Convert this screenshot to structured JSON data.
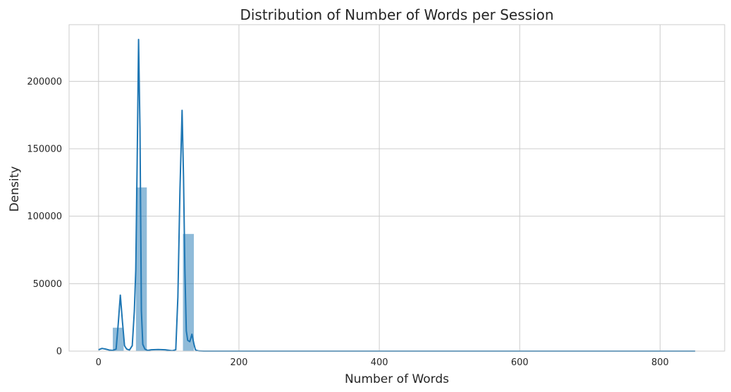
{
  "chart_data": {
    "type": "bar",
    "title": "Distribution of Number of Words per Session",
    "xlabel": "Number of Words",
    "ylabel": "Density",
    "xlim": [
      -42,
      892
    ],
    "ylim": [
      0,
      242000
    ],
    "xticks": [
      0,
      200,
      400,
      600,
      800
    ],
    "yticks": [
      0,
      50000,
      100000,
      150000,
      200000
    ],
    "xtick_labels": [
      "0",
      "200",
      "400",
      "600",
      "800"
    ],
    "ytick_labels": [
      "0",
      "50000",
      "100000",
      "150000",
      "200000"
    ],
    "grid": true,
    "bar_color": "#1f77b4",
    "histogram": {
      "bins": [
        {
          "x0": 20,
          "x1": 36,
          "value": 17500
        },
        {
          "x0": 53,
          "x1": 69,
          "value": 121500
        },
        {
          "x0": 120,
          "x1": 136,
          "value": 87000
        }
      ]
    },
    "kde": {
      "name": "",
      "x": [
        0,
        5,
        10,
        15,
        20,
        25,
        28,
        31,
        34,
        37,
        40,
        44,
        48,
        51,
        53,
        55,
        57,
        59,
        61,
        63,
        66,
        70,
        75,
        85,
        95,
        105,
        110,
        113,
        116,
        119,
        121,
        123,
        125,
        127,
        130,
        133,
        136,
        138,
        140,
        143,
        150,
        200,
        400,
        600,
        850
      ],
      "y": [
        1000,
        2000,
        1500,
        800,
        500,
        1500,
        20000,
        41500,
        22000,
        4000,
        1500,
        800,
        4000,
        30000,
        60000,
        140000,
        231000,
        165000,
        30000,
        5000,
        1500,
        500,
        1000,
        1200,
        1000,
        300,
        1000,
        40000,
        120000,
        178500,
        130000,
        60000,
        15000,
        8000,
        7000,
        12500,
        5000,
        1000,
        500,
        100,
        0,
        0,
        0,
        0,
        0
      ]
    }
  }
}
